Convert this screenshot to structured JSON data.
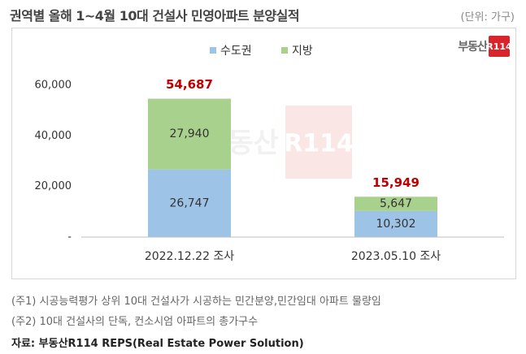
{
  "header": {
    "title": "권역별 올해 1~4월 10대 건설사 민영아파트 분양실적",
    "unit": "(단위: 가구)"
  },
  "logo": {
    "text": "부동산",
    "mark": "R114"
  },
  "watermark": {
    "text": "부동산",
    "mark": "R114"
  },
  "chart_data": {
    "type": "bar",
    "stacked": true,
    "categories": [
      "2022.12.22 조사",
      "2023.05.10 조사"
    ],
    "series": [
      {
        "name": "수도권",
        "values": [
          26747,
          10302
        ],
        "labels": [
          "26,747",
          "10,302"
        ],
        "color": "#9dc3e6"
      },
      {
        "name": "지방",
        "values": [
          27940,
          5647
        ],
        "labels": [
          "27,940",
          "5,647"
        ],
        "color": "#a9d18e"
      }
    ],
    "totals": [
      54687,
      15949
    ],
    "total_labels": [
      "54,687",
      "15,949"
    ],
    "total_color": "#c00000",
    "yticks": [
      0,
      20000,
      40000,
      60000
    ],
    "ytick_labels": [
      "-",
      "20,000",
      "40,000",
      "60,000"
    ],
    "ylim": [
      0,
      60000
    ],
    "grid": false,
    "legend_position": "top-center"
  },
  "footnotes": [
    "(주1) 시공능력평가 상위 10대 건설사가 시공하는 민간분양,민간임대 아파트 물량임",
    "(주2) 10대 건설사의 단독, 컨소시엄 아파트의 총가구수"
  ],
  "source": "자료: 부동산R114 REPS(Real Estate Power Solution)"
}
